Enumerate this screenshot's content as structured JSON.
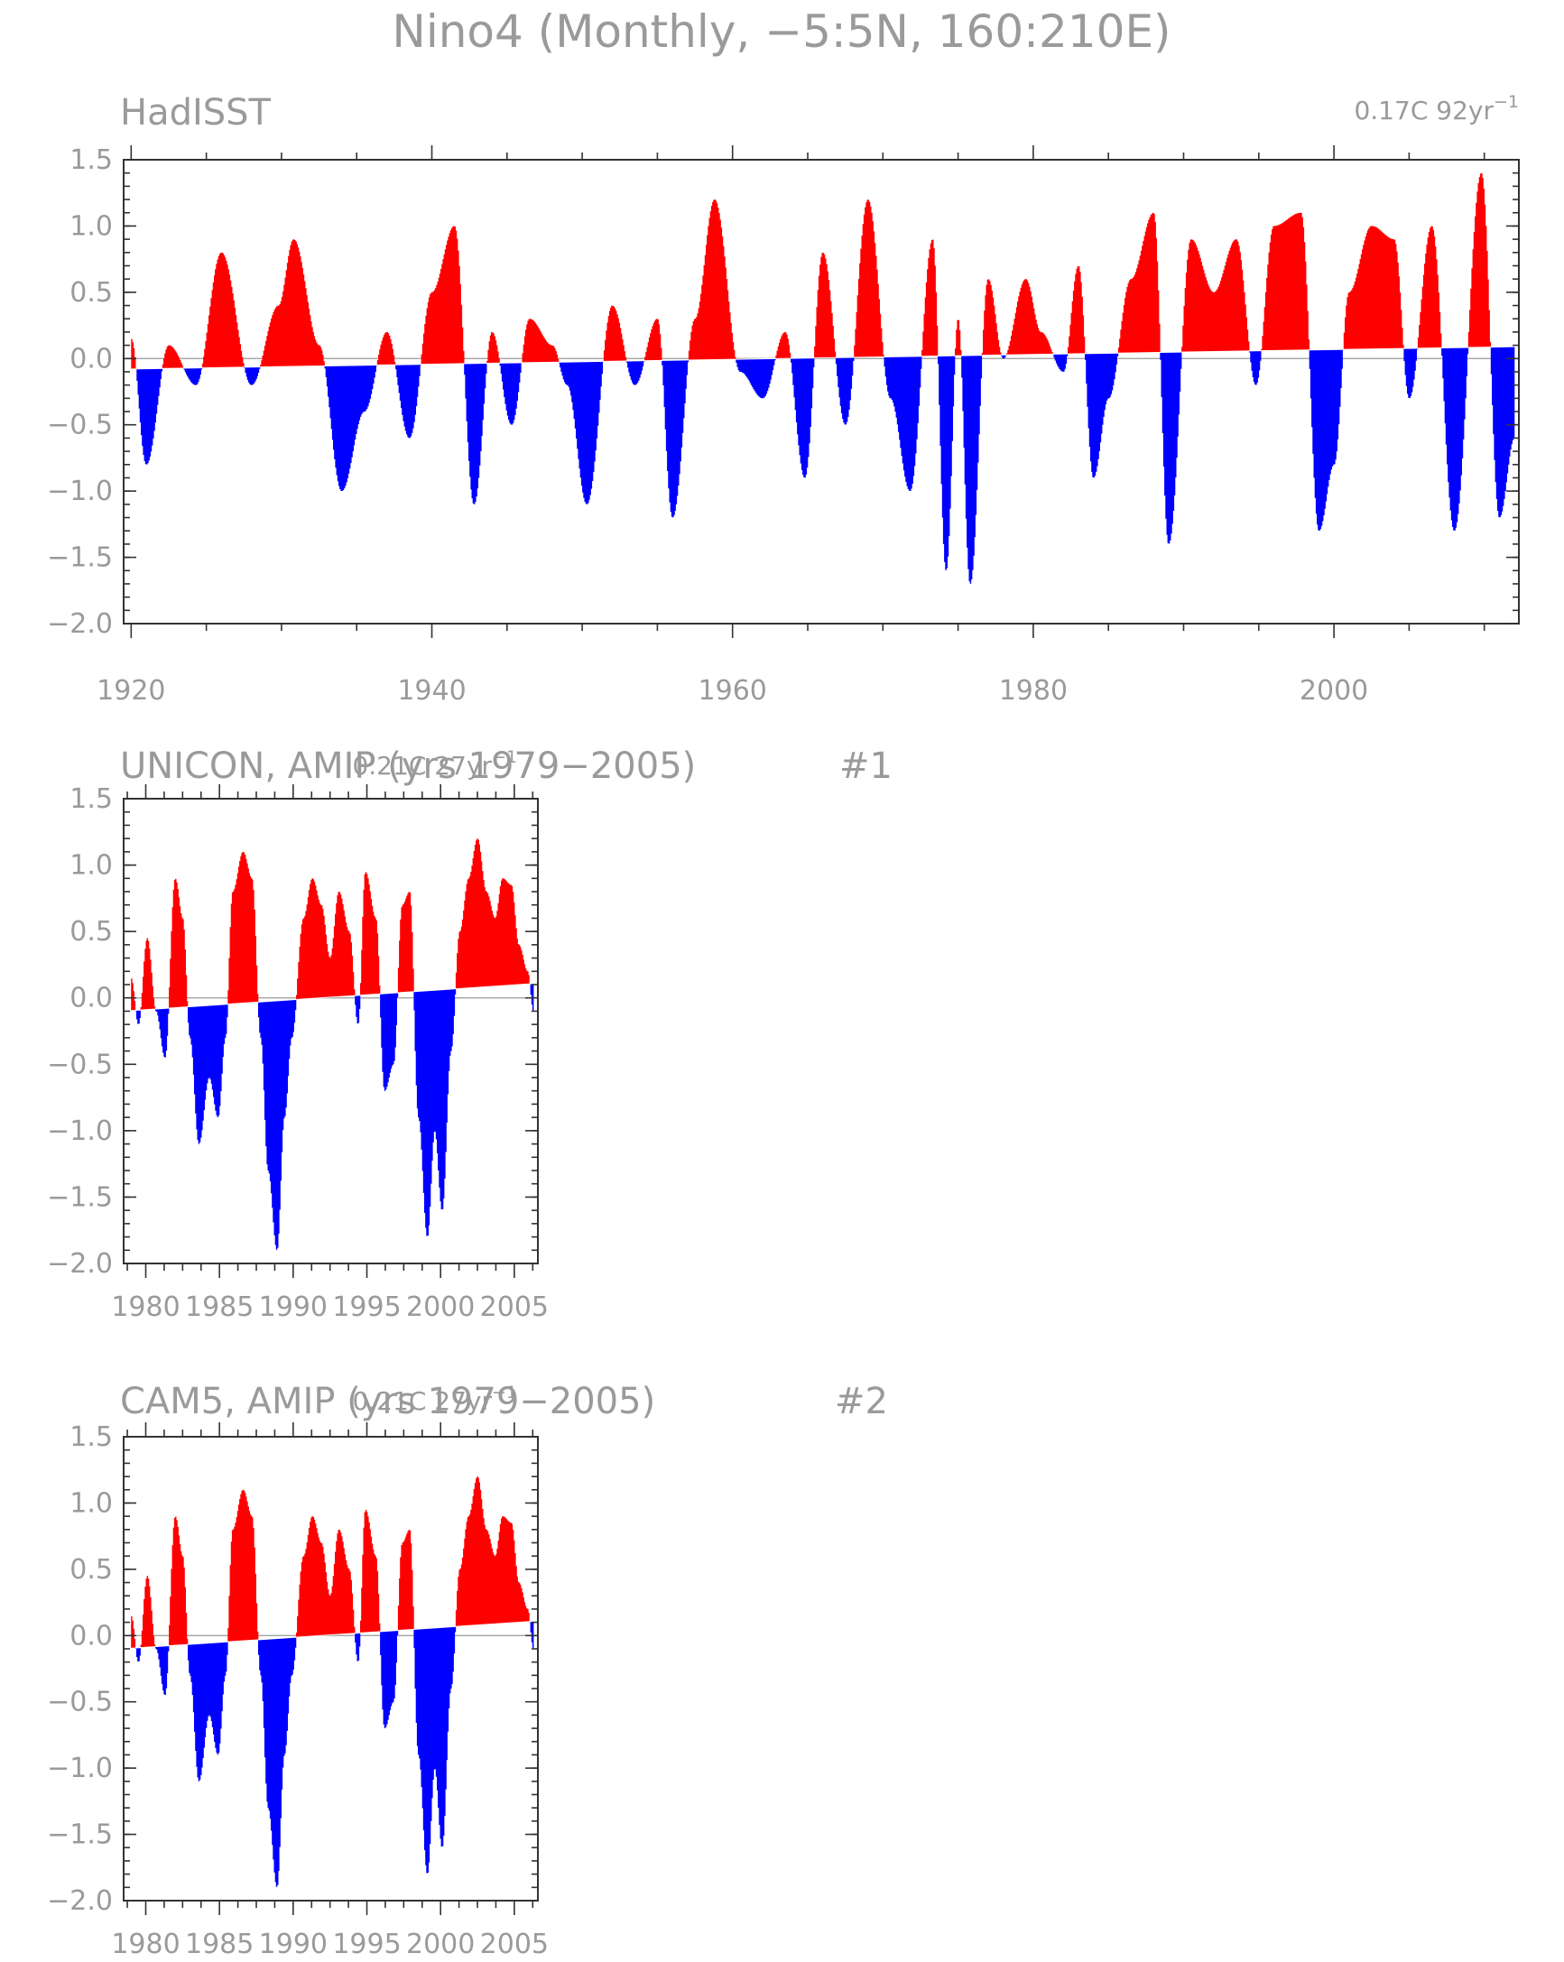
{
  "title": "Nino4 (Monthly, −5:5N, 160:210E)",
  "colors": {
    "positive": "#ff0000",
    "negative": "#0000ff",
    "text": "#9a9a9a",
    "frame": "#333333"
  },
  "chart_data": [
    {
      "type": "area",
      "label": "HadISST",
      "trend_text": "0.17C 92yr",
      "trend_exponent": "−1",
      "panel_number": "",
      "xlim": [
        1919.5,
        2012.3
      ],
      "ylim": [
        -2.0,
        1.5
      ],
      "x_major_ticks": [
        1920,
        1940,
        1960,
        1980,
        2000
      ],
      "x_tick_labels": [
        "1920",
        "1940",
        "1960",
        "1980",
        "2000"
      ],
      "y_ticks": [
        1.5,
        1.0,
        0.5,
        0.0,
        -0.5,
        -1.0,
        -1.5,
        -2.0
      ],
      "y_tick_labels": [
        "1.5",
        "1.0",
        "0.5",
        "0.0",
        "−0.5",
        "−1.0",
        "−1.5",
        "−2.0"
      ],
      "trend": {
        "start": -0.08,
        "end": 0.09
      },
      "x": [
        1920.0,
        1921.0,
        1922.5,
        1924.3,
        1926.0,
        1928.0,
        1929.8,
        1930.8,
        1932.5,
        1934.0,
        1935.5,
        1937.0,
        1938.5,
        1940.0,
        1941.5,
        1942.8,
        1944.0,
        1945.3,
        1946.5,
        1948.0,
        1949.0,
        1950.3,
        1952.0,
        1953.5,
        1955.0,
        1956.0,
        1957.5,
        1958.8,
        1960.5,
        1962.0,
        1963.5,
        1964.8,
        1966.0,
        1967.5,
        1969.0,
        1970.5,
        1971.8,
        1973.3,
        1974.2,
        1975.0,
        1975.8,
        1977.0,
        1978.0,
        1979.5,
        1980.5,
        1982.0,
        1983.0,
        1984.0,
        1985.0,
        1986.5,
        1988.0,
        1989.0,
        1990.5,
        1992.0,
        1993.5,
        1994.8,
        1996.0,
        1997.8,
        1999.0,
        2000.0,
        2001.0,
        2002.5,
        2004.0,
        2005.0,
        2006.5,
        2008.0,
        2009.8,
        2011.0,
        2012.0
      ],
      "values": [
        0.15,
        -0.8,
        0.1,
        -0.2,
        0.8,
        -0.2,
        0.4,
        0.9,
        0.1,
        -1.0,
        -0.4,
        0.2,
        -0.6,
        0.5,
        1.0,
        -1.1,
        0.2,
        -0.5,
        0.3,
        0.1,
        -0.2,
        -1.1,
        0.4,
        -0.2,
        0.3,
        -1.2,
        0.3,
        1.2,
        -0.1,
        -0.3,
        0.2,
        -0.9,
        0.8,
        -0.5,
        1.2,
        -0.3,
        -1.0,
        0.9,
        -1.6,
        0.3,
        -1.7,
        0.6,
        0.0,
        0.6,
        0.2,
        -0.1,
        0.7,
        -0.9,
        -0.3,
        0.6,
        1.1,
        -1.4,
        0.9,
        0.5,
        0.9,
        -0.2,
        1.0,
        1.1,
        -1.3,
        -0.8,
        0.5,
        1.0,
        0.9,
        -0.3,
        1.0,
        -1.3,
        1.4,
        -1.2,
        -0.6
      ]
    },
    {
      "type": "area",
      "label": "UNICON, AMIP (yrs 1979−2005)",
      "trend_text": "0.21C 27yr",
      "trend_exponent": "−1",
      "panel_number": "#1",
      "xlim": [
        1978.5,
        2006.6
      ],
      "ylim": [
        -2.0,
        1.5
      ],
      "x_major_ticks": [
        1980,
        1985,
        1990,
        1995,
        2000,
        2005
      ],
      "x_tick_labels": [
        "1980",
        "1985",
        "1990",
        "1995",
        "2000",
        "2005"
      ],
      "y_ticks": [
        1.5,
        1.0,
        0.5,
        0.0,
        -0.5,
        -1.0,
        -1.5,
        -2.0
      ],
      "y_tick_labels": [
        "1.5",
        "1.0",
        "0.5",
        "0.0",
        "−0.5",
        "−1.0",
        "−1.5",
        "−2.0"
      ],
      "trend": {
        "start": -0.1,
        "end": 0.11
      },
      "x": [
        1979.0,
        1979.5,
        1980.1,
        1980.7,
        1981.3,
        1982.0,
        1982.5,
        1983.0,
        1983.6,
        1984.3,
        1984.9,
        1985.4,
        1985.9,
        1986.6,
        1987.2,
        1987.8,
        1988.3,
        1988.9,
        1989.4,
        1989.9,
        1990.7,
        1991.3,
        1991.9,
        1992.5,
        1993.1,
        1993.8,
        1994.4,
        1994.9,
        1995.6,
        1996.2,
        1996.8,
        1997.4,
        1997.9,
        1998.5,
        1999.1,
        1999.6,
        2000.1,
        2000.7,
        2001.3,
        2001.9,
        2002.5,
        2003.1,
        2003.7,
        2004.2,
        2004.8,
        2005.3,
        2005.9,
        2006.3
      ],
      "values": [
        0.15,
        -0.2,
        0.45,
        -0.1,
        -0.45,
        0.9,
        0.6,
        -0.3,
        -1.1,
        -0.6,
        -0.9,
        -0.3,
        0.8,
        1.1,
        0.9,
        -0.3,
        -1.3,
        -1.9,
        -0.9,
        -0.3,
        0.6,
        0.9,
        0.7,
        0.3,
        0.8,
        0.5,
        -0.2,
        0.95,
        0.6,
        -0.7,
        -0.5,
        0.7,
        0.8,
        -0.9,
        -1.8,
        -1.0,
        -1.6,
        -0.4,
        0.5,
        0.9,
        1.2,
        0.8,
        0.6,
        0.9,
        0.85,
        0.4,
        0.2,
        -0.1
      ]
    },
    {
      "type": "area",
      "label": "CAM5, AMIP (yrs 1979−2005)",
      "trend_text": "0.21C 27yr",
      "trend_exponent": "−1",
      "panel_number": "#2",
      "xlim": [
        1978.5,
        2006.6
      ],
      "ylim": [
        -2.0,
        1.5
      ],
      "x_major_ticks": [
        1980,
        1985,
        1990,
        1995,
        2000,
        2005
      ],
      "x_tick_labels": [
        "1980",
        "1985",
        "1990",
        "1995",
        "2000",
        "2005"
      ],
      "y_ticks": [
        1.5,
        1.0,
        0.5,
        0.0,
        -0.5,
        -1.0,
        -1.5,
        -2.0
      ],
      "y_tick_labels": [
        "1.5",
        "1.0",
        "0.5",
        "0.0",
        "−0.5",
        "−1.0",
        "−1.5",
        "−2.0"
      ],
      "trend": {
        "start": -0.1,
        "end": 0.11
      },
      "x": [
        1979.0,
        1979.5,
        1980.1,
        1980.7,
        1981.3,
        1982.0,
        1982.5,
        1983.0,
        1983.6,
        1984.3,
        1984.9,
        1985.4,
        1985.9,
        1986.6,
        1987.2,
        1987.8,
        1988.3,
        1988.9,
        1989.4,
        1989.9,
        1990.7,
        1991.3,
        1991.9,
        1992.5,
        1993.1,
        1993.8,
        1994.4,
        1994.9,
        1995.6,
        1996.2,
        1996.8,
        1997.4,
        1997.9,
        1998.5,
        1999.1,
        1999.6,
        2000.1,
        2000.7,
        2001.3,
        2001.9,
        2002.5,
        2003.1,
        2003.7,
        2004.2,
        2004.8,
        2005.3,
        2005.9,
        2006.3
      ],
      "values": [
        0.15,
        -0.2,
        0.45,
        -0.1,
        -0.45,
        0.9,
        0.6,
        -0.3,
        -1.1,
        -0.6,
        -0.9,
        -0.3,
        0.8,
        1.1,
        0.9,
        -0.3,
        -1.3,
        -1.9,
        -0.9,
        -0.3,
        0.6,
        0.9,
        0.7,
        0.3,
        0.8,
        0.5,
        -0.2,
        0.95,
        0.6,
        -0.7,
        -0.5,
        0.7,
        0.8,
        -0.9,
        -1.8,
        -1.0,
        -1.6,
        -0.4,
        0.5,
        0.9,
        1.2,
        0.8,
        0.6,
        0.9,
        0.85,
        0.4,
        0.2,
        -0.1
      ]
    }
  ]
}
